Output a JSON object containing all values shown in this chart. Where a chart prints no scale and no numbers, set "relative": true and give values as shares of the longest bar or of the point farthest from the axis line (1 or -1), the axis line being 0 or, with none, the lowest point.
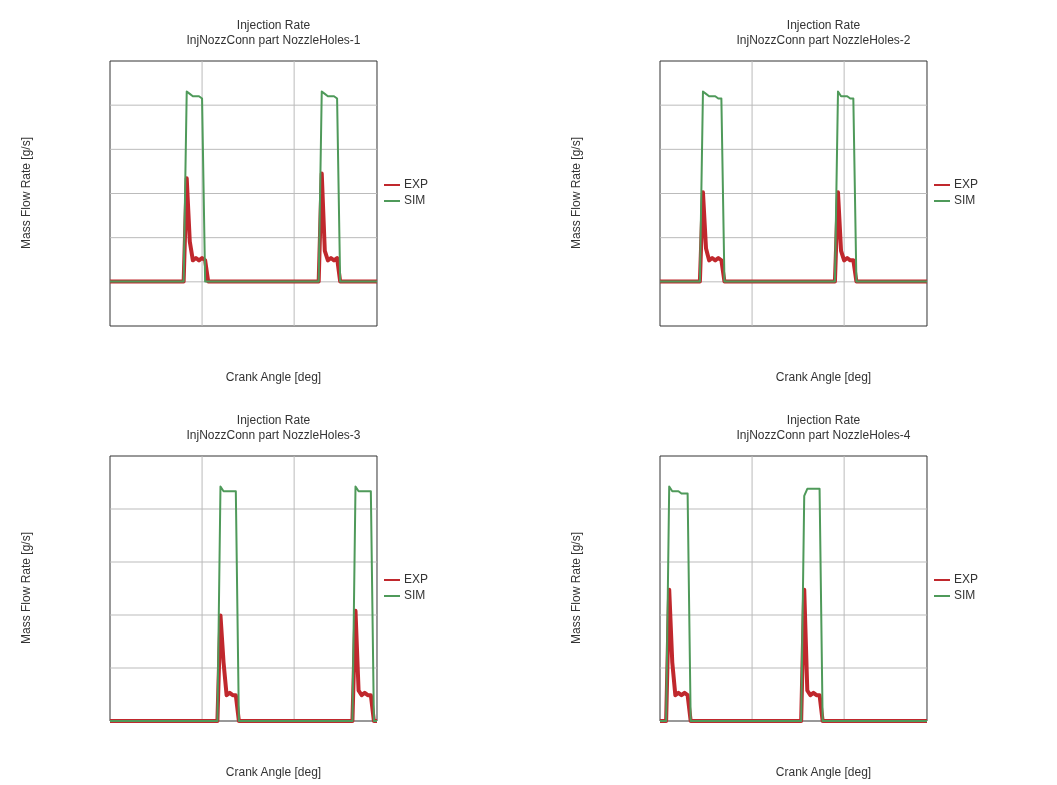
{
  "chart_data": [
    {
      "type": "line",
      "title": "Injection Rate",
      "subtitle": "InjNozzConn part NozzleHoles-1",
      "xlabel": "Crank Angle [deg]",
      "ylabel": "Mass Flow Rate [g/s]",
      "relative": true,
      "grid": true,
      "legend": "right",
      "categories": [
        null,
        null,
        null,
        null,
        null,
        null,
        null,
        null,
        null,
        null,
        null,
        null,
        null,
        null,
        null,
        null,
        null,
        null,
        null,
        null,
        null,
        null,
        null,
        null,
        null,
        null,
        null,
        null,
        null,
        null,
        null,
        null,
        null,
        null,
        null,
        null,
        null,
        null,
        null,
        null,
        null,
        null,
        null,
        null,
        null,
        null,
        null,
        null,
        null,
        null,
        null,
        null,
        null,
        null,
        null,
        null,
        null,
        null,
        null,
        null,
        null,
        null,
        null,
        null,
        null,
        null,
        null,
        null,
        null,
        null,
        null,
        null,
        null,
        null,
        null,
        null,
        null,
        null,
        null,
        null,
        null,
        null,
        null,
        null,
        null,
        null,
        null,
        null
      ],
      "series": [
        {
          "name": "EXP",
          "color": "#c0282d",
          "values": [
            0.19,
            0.19,
            0.19,
            0.19,
            0.19,
            0.19,
            0.19,
            0.19,
            0.19,
            0.19,
            0.19,
            0.19,
            0.19,
            0.19,
            0.19,
            0.19,
            0.19,
            0.19,
            0.19,
            0.19,
            0.19,
            0.19,
            0.19,
            0.19,
            0.19,
            0.63,
            0.36,
            0.28,
            0.29,
            0.28,
            0.29,
            0.28,
            0.19,
            0.19,
            0.19,
            0.19,
            0.19,
            0.19,
            0.19,
            0.19,
            0.19,
            0.19,
            0.19,
            0.19,
            0.19,
            0.19,
            0.19,
            0.19,
            0.19,
            0.19,
            0.19,
            0.19,
            0.19,
            0.19,
            0.19,
            0.19,
            0.19,
            0.19,
            0.19,
            0.19,
            0.19,
            0.19,
            0.19,
            0.19,
            0.19,
            0.19,
            0.19,
            0.19,
            0.19,
            0.65,
            0.32,
            0.28,
            0.29,
            0.28,
            0.29,
            0.19,
            0.19,
            0.19,
            0.19,
            0.19,
            0.19,
            0.19,
            0.19,
            0.19,
            0.19,
            0.19,
            0.19,
            0.19
          ]
        },
        {
          "name": "SIM",
          "color": "#4f9a5a",
          "values": [
            0.19,
            0.19,
            0.19,
            0.19,
            0.19,
            0.19,
            0.19,
            0.19,
            0.19,
            0.19,
            0.19,
            0.19,
            0.19,
            0.19,
            0.19,
            0.19,
            0.19,
            0.19,
            0.19,
            0.19,
            0.19,
            0.19,
            0.19,
            0.19,
            0.19,
            1.0,
            0.99,
            0.98,
            0.98,
            0.98,
            0.97,
            0.19,
            0.19,
            0.19,
            0.19,
            0.19,
            0.19,
            0.19,
            0.19,
            0.19,
            0.19,
            0.19,
            0.19,
            0.19,
            0.19,
            0.19,
            0.19,
            0.19,
            0.19,
            0.19,
            0.19,
            0.19,
            0.19,
            0.19,
            0.19,
            0.19,
            0.19,
            0.19,
            0.19,
            0.19,
            0.19,
            0.19,
            0.19,
            0.19,
            0.19,
            0.19,
            0.19,
            0.19,
            0.19,
            1.0,
            0.99,
            0.98,
            0.98,
            0.98,
            0.97,
            0.19,
            0.19,
            0.19,
            0.19,
            0.19,
            0.19,
            0.19,
            0.19,
            0.19,
            0.19,
            0.19,
            0.19,
            0.19
          ]
        }
      ]
    },
    {
      "type": "line",
      "title": "Injection Rate",
      "subtitle": "InjNozzConn part NozzleHoles-2",
      "xlabel": "Crank Angle [deg]",
      "ylabel": "Mass Flow Rate [g/s]",
      "relative": true,
      "grid": true,
      "legend": "right",
      "categories": [
        null,
        null,
        null,
        null,
        null,
        null,
        null,
        null,
        null,
        null,
        null,
        null,
        null,
        null,
        null,
        null,
        null,
        null,
        null,
        null,
        null,
        null,
        null,
        null,
        null,
        null,
        null,
        null,
        null,
        null,
        null,
        null,
        null,
        null,
        null,
        null,
        null,
        null,
        null,
        null,
        null,
        null,
        null,
        null,
        null,
        null,
        null,
        null,
        null,
        null,
        null,
        null,
        null,
        null,
        null,
        null,
        null,
        null,
        null,
        null,
        null,
        null,
        null,
        null,
        null,
        null,
        null,
        null,
        null,
        null,
        null,
        null,
        null,
        null,
        null,
        null,
        null,
        null,
        null,
        null,
        null,
        null,
        null,
        null,
        null,
        null,
        null,
        null
      ],
      "series": [
        {
          "name": "EXP",
          "color": "#c0282d",
          "values": [
            0.19,
            0.19,
            0.19,
            0.19,
            0.19,
            0.19,
            0.19,
            0.19,
            0.19,
            0.19,
            0.19,
            0.19,
            0.19,
            0.19,
            0.57,
            0.33,
            0.28,
            0.29,
            0.28,
            0.29,
            0.28,
            0.19,
            0.19,
            0.19,
            0.19,
            0.19,
            0.19,
            0.19,
            0.19,
            0.19,
            0.19,
            0.19,
            0.19,
            0.19,
            0.19,
            0.19,
            0.19,
            0.19,
            0.19,
            0.19,
            0.19,
            0.19,
            0.19,
            0.19,
            0.19,
            0.19,
            0.19,
            0.19,
            0.19,
            0.19,
            0.19,
            0.19,
            0.19,
            0.19,
            0.19,
            0.19,
            0.19,
            0.19,
            0.57,
            0.32,
            0.28,
            0.29,
            0.28,
            0.28,
            0.19,
            0.19,
            0.19,
            0.19,
            0.19,
            0.19,
            0.19,
            0.19,
            0.19,
            0.19,
            0.19,
            0.19,
            0.19,
            0.19,
            0.19,
            0.19,
            0.19,
            0.19,
            0.19,
            0.19,
            0.19,
            0.19,
            0.19,
            0.19
          ]
        },
        {
          "name": "SIM",
          "color": "#4f9a5a",
          "values": [
            0.19,
            0.19,
            0.19,
            0.19,
            0.19,
            0.19,
            0.19,
            0.19,
            0.19,
            0.19,
            0.19,
            0.19,
            0.19,
            0.19,
            1.0,
            0.99,
            0.98,
            0.98,
            0.98,
            0.97,
            0.97,
            0.19,
            0.19,
            0.19,
            0.19,
            0.19,
            0.19,
            0.19,
            0.19,
            0.19,
            0.19,
            0.19,
            0.19,
            0.19,
            0.19,
            0.19,
            0.19,
            0.19,
            0.19,
            0.19,
            0.19,
            0.19,
            0.19,
            0.19,
            0.19,
            0.19,
            0.19,
            0.19,
            0.19,
            0.19,
            0.19,
            0.19,
            0.19,
            0.19,
            0.19,
            0.19,
            0.19,
            0.19,
            1.0,
            0.98,
            0.98,
            0.98,
            0.97,
            0.97,
            0.19,
            0.19,
            0.19,
            0.19,
            0.19,
            0.19,
            0.19,
            0.19,
            0.19,
            0.19,
            0.19,
            0.19,
            0.19,
            0.19,
            0.19,
            0.19,
            0.19,
            0.19,
            0.19,
            0.19,
            0.19,
            0.19,
            0.19,
            0.19
          ]
        }
      ]
    },
    {
      "type": "line",
      "title": "Injection Rate",
      "subtitle": "InjNozzConn part NozzleHoles-3",
      "xlabel": "Crank Angle [deg]",
      "ylabel": "Mass Flow Rate [g/s]",
      "relative": true,
      "grid": true,
      "legend": "right",
      "categories": [
        null,
        null,
        null,
        null,
        null,
        null,
        null,
        null,
        null,
        null,
        null,
        null,
        null,
        null,
        null,
        null,
        null,
        null,
        null,
        null,
        null,
        null,
        null,
        null,
        null,
        null,
        null,
        null,
        null,
        null,
        null,
        null,
        null,
        null,
        null,
        null,
        null,
        null,
        null,
        null,
        null,
        null,
        null,
        null,
        null,
        null,
        null,
        null,
        null,
        null,
        null,
        null,
        null,
        null,
        null,
        null,
        null,
        null,
        null,
        null,
        null,
        null,
        null,
        null,
        null,
        null,
        null,
        null,
        null,
        null,
        null,
        null,
        null,
        null,
        null,
        null,
        null,
        null,
        null,
        null,
        null,
        null,
        null,
        null,
        null,
        null,
        null,
        null
      ],
      "series": [
        {
          "name": "EXP",
          "color": "#c0282d",
          "values": [
            0,
            0,
            0,
            0,
            0,
            0,
            0,
            0,
            0,
            0,
            0,
            0,
            0,
            0,
            0,
            0,
            0,
            0,
            0,
            0,
            0,
            0,
            0,
            0,
            0,
            0,
            0,
            0,
            0,
            0,
            0,
            0,
            0,
            0,
            0,
            0,
            0.45,
            0.25,
            0.11,
            0.12,
            0.11,
            0.11,
            0,
            0,
            0,
            0,
            0,
            0,
            0,
            0,
            0,
            0,
            0,
            0,
            0,
            0,
            0,
            0,
            0,
            0,
            0,
            0,
            0,
            0,
            0,
            0,
            0,
            0,
            0,
            0,
            0,
            0,
            0,
            0,
            0,
            0,
            0,
            0,
            0,
            0,
            0.47,
            0.13,
            0.11,
            0.12,
            0.11,
            0.11,
            0,
            0
          ]
        },
        {
          "name": "SIM",
          "color": "#4f9a5a",
          "values": [
            0,
            0,
            0,
            0,
            0,
            0,
            0,
            0,
            0,
            0,
            0,
            0,
            0,
            0,
            0,
            0,
            0,
            0,
            0,
            0,
            0,
            0,
            0,
            0,
            0,
            0,
            0,
            0,
            0,
            0,
            0,
            0,
            0,
            0,
            0,
            0,
            1.0,
            0.98,
            0.98,
            0.98,
            0.98,
            0.98,
            0,
            0,
            0,
            0,
            0,
            0,
            0,
            0,
            0,
            0,
            0,
            0,
            0,
            0,
            0,
            0,
            0,
            0,
            0,
            0,
            0,
            0,
            0,
            0,
            0,
            0,
            0,
            0,
            0,
            0,
            0,
            0,
            0,
            0,
            0,
            0,
            0,
            0,
            1.0,
            0.98,
            0.98,
            0.98,
            0.98,
            0.98,
            0,
            0
          ]
        }
      ]
    },
    {
      "type": "line",
      "title": "Injection Rate",
      "subtitle": "InjNozzConn part NozzleHoles-4",
      "xlabel": "Crank Angle [deg]",
      "ylabel": "Mass Flow Rate [g/s]",
      "relative": true,
      "grid": true,
      "legend": "right",
      "categories": [
        null,
        null,
        null,
        null,
        null,
        null,
        null,
        null,
        null,
        null,
        null,
        null,
        null,
        null,
        null,
        null,
        null,
        null,
        null,
        null,
        null,
        null,
        null,
        null,
        null,
        null,
        null,
        null,
        null,
        null,
        null,
        null,
        null,
        null,
        null,
        null,
        null,
        null,
        null,
        null,
        null,
        null,
        null,
        null,
        null,
        null,
        null,
        null,
        null,
        null,
        null,
        null,
        null,
        null,
        null,
        null,
        null,
        null,
        null,
        null,
        null,
        null,
        null,
        null,
        null,
        null,
        null,
        null,
        null,
        null,
        null,
        null,
        null,
        null,
        null,
        null,
        null,
        null,
        null,
        null,
        null,
        null,
        null,
        null,
        null,
        null,
        null,
        null
      ],
      "series": [
        {
          "name": "EXP",
          "color": "#c0282d",
          "values": [
            0,
            0,
            0,
            0.56,
            0.25,
            0.11,
            0.12,
            0.11,
            0.12,
            0.11,
            0,
            0,
            0,
            0,
            0,
            0,
            0,
            0,
            0,
            0,
            0,
            0,
            0,
            0,
            0,
            0,
            0,
            0,
            0,
            0,
            0,
            0,
            0,
            0,
            0,
            0,
            0,
            0,
            0,
            0,
            0,
            0,
            0,
            0,
            0,
            0,
            0,
            0.56,
            0.13,
            0.11,
            0.12,
            0.11,
            0.11,
            0,
            0,
            0,
            0,
            0,
            0,
            0,
            0,
            0,
            0,
            0,
            0,
            0,
            0,
            0,
            0,
            0,
            0,
            0,
            0,
            0,
            0,
            0,
            0,
            0,
            0,
            0,
            0,
            0,
            0,
            0,
            0,
            0,
            0,
            0
          ]
        },
        {
          "name": "SIM",
          "color": "#4f9a5a",
          "values": [
            0,
            0,
            0,
            1.0,
            0.98,
            0.98,
            0.98,
            0.97,
            0.97,
            0.97,
            0,
            0,
            0,
            0,
            0,
            0,
            0,
            0,
            0,
            0,
            0,
            0,
            0,
            0,
            0,
            0,
            0,
            0,
            0,
            0,
            0,
            0,
            0,
            0,
            0,
            0,
            0,
            0,
            0,
            0,
            0,
            0,
            0,
            0,
            0,
            0,
            0,
            0.96,
            0.99,
            0.99,
            0.99,
            0.99,
            0.99,
            0,
            0,
            0,
            0,
            0,
            0,
            0,
            0,
            0,
            0,
            0,
            0,
            0,
            0,
            0,
            0,
            0,
            0,
            0,
            0,
            0,
            0,
            0,
            0,
            0,
            0,
            0,
            0,
            0,
            0,
            0,
            0,
            0,
            0,
            0
          ]
        }
      ]
    }
  ]
}
